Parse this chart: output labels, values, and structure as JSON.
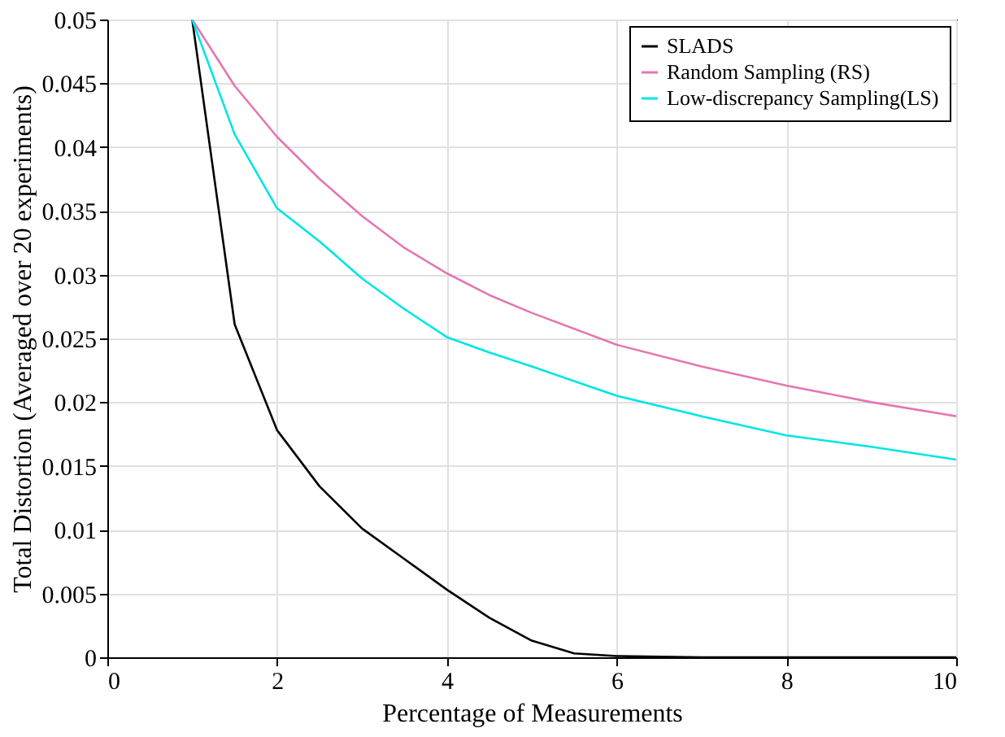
{
  "chart_data": {
    "type": "line",
    "xlabel": "Percentage of Measurements",
    "ylabel": "Total Distortion (Averaged over 20 experiments)",
    "xlim": [
      0,
      10
    ],
    "xticks": [
      0,
      2,
      4,
      6,
      8,
      10
    ],
    "ylim": [
      0,
      0.05
    ],
    "yticks": [
      0,
      0.005,
      0.01,
      0.015,
      0.02,
      0.025,
      0.03,
      0.035,
      0.04,
      0.045,
      0.05
    ],
    "grid": true,
    "legend": "top right",
    "marker": "none",
    "line_style": "solid",
    "series": [
      {
        "name": "SLADS",
        "color": "#000000",
        "x": [
          1,
          1.5,
          2,
          2.5,
          3,
          3.5,
          4,
          4.5,
          5,
          5.5,
          6,
          7,
          8,
          9,
          10
        ],
        "values": [
          0.05,
          0.0261,
          0.0178,
          0.0134,
          0.0101,
          0.0077,
          0.0053,
          0.0031,
          0.0013,
          0.0003,
          0.0001,
          0,
          0,
          0,
          0
        ]
      },
      {
        "name": "Random Sampling (RS)",
        "color": "#e377b4",
        "x": [
          1,
          1.5,
          2,
          2.5,
          3,
          3.5,
          4,
          4.5,
          5,
          6,
          7,
          8,
          9,
          10
        ],
        "values": [
          0.05,
          0.0448,
          0.0408,
          0.0375,
          0.0346,
          0.0321,
          0.0301,
          0.0284,
          0.027,
          0.0245,
          0.0228,
          0.0213,
          0.02,
          0.0189
        ]
      },
      {
        "name": "Low-discrepancy Sampling(LS)",
        "color": "#00e5e5",
        "x": [
          1,
          1.5,
          2,
          2.5,
          3,
          3.5,
          4,
          4.5,
          5,
          6,
          7,
          8,
          9,
          10
        ],
        "values": [
          0.05,
          0.041,
          0.0352,
          0.0326,
          0.0297,
          0.0273,
          0.0251,
          0.0239,
          0.0228,
          0.0205,
          0.0189,
          0.0174,
          0.0165,
          0.0155
        ]
      }
    ]
  }
}
